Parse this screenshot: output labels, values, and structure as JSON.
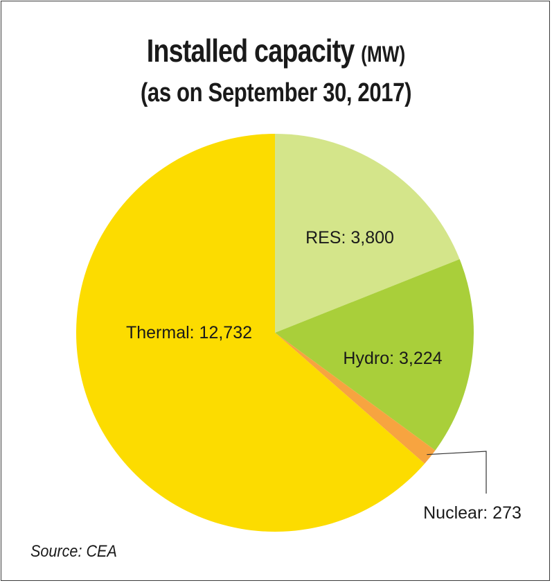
{
  "chart_data": {
    "type": "pie",
    "title": "Installed capacity",
    "title_unit": "(MW)",
    "subtitle": "(as on September 30, 2017)",
    "slices": [
      {
        "name": "RES",
        "value": 3800,
        "label": "RES: 3,800",
        "color": "#d4e58a"
      },
      {
        "name": "Hydro",
        "value": 3224,
        "label": "Hydro: 3,224",
        "color": "#a9cf3a"
      },
      {
        "name": "Nuclear",
        "value": 273,
        "label": "Nuclear: 273",
        "color": "#f7a440"
      },
      {
        "name": "Thermal",
        "value": 12732,
        "label": "Thermal: 12,732",
        "color": "#fcdc00"
      }
    ],
    "start": "12 o'clock",
    "direction": "clockwise",
    "source": "Source: CEA"
  }
}
